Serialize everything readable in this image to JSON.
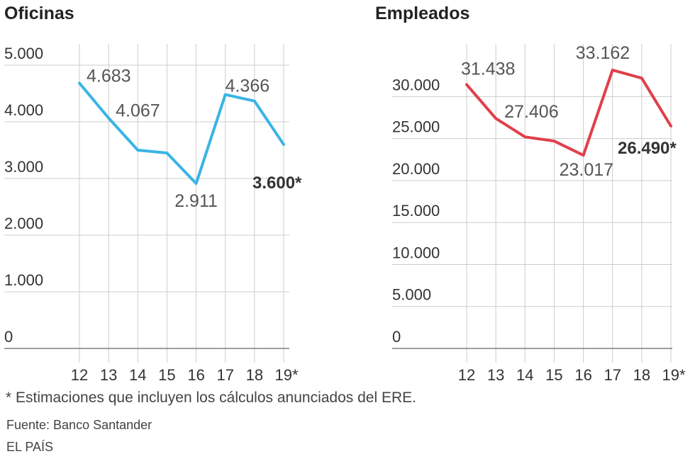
{
  "footnote": "* Estimaciones que incluyen los cálculos anunciados del ERE.",
  "source": "Fuente: Banco Santander",
  "credit": "EL PAÍS",
  "chart_data": [
    {
      "type": "line",
      "title": "Oficinas",
      "categories": [
        "12",
        "13",
        "14",
        "15",
        "16",
        "17",
        "18",
        "19*"
      ],
      "series": [
        {
          "values": [
            4683,
            4067,
            3500,
            3450,
            2911,
            4480,
            4366,
            3600
          ],
          "color": "#3ab4e6"
        }
      ],
      "ylim": [
        0,
        5000
      ],
      "yticks": [
        {
          "value": 0,
          "label": "0"
        },
        {
          "value": 1000,
          "label": "1.000"
        },
        {
          "value": 2000,
          "label": "2.000"
        },
        {
          "value": 3000,
          "label": "3.000"
        },
        {
          "value": 4000,
          "label": "4.000"
        },
        {
          "value": 5000,
          "label": "5.000"
        }
      ],
      "data_labels": [
        {
          "index": 0,
          "text": "4.683",
          "bold": false
        },
        {
          "index": 1,
          "text": "4.067",
          "bold": false
        },
        {
          "index": 4,
          "text": "2.911",
          "bold": false
        },
        {
          "index": 6,
          "text": "4.366",
          "bold": false
        },
        {
          "index": 7,
          "text": "3.600*",
          "bold": true
        }
      ],
      "grid": true
    },
    {
      "type": "line",
      "title": "Empleados",
      "categories": [
        "12",
        "13",
        "14",
        "15",
        "16",
        "17",
        "18",
        "19*"
      ],
      "series": [
        {
          "values": [
            31438,
            27406,
            25200,
            24700,
            23017,
            33162,
            32200,
            26490
          ],
          "color": "#e0404a"
        }
      ],
      "ylim": [
        0,
        33000
      ],
      "yticks": [
        {
          "value": 0,
          "label": "0"
        },
        {
          "value": 5000,
          "label": "5.000"
        },
        {
          "value": 10000,
          "label": "10.000"
        },
        {
          "value": 15000,
          "label": "15.000"
        },
        {
          "value": 20000,
          "label": "20.000"
        },
        {
          "value": 25000,
          "label": "25.000"
        },
        {
          "value": 30000,
          "label": "30.000"
        }
      ],
      "data_labels": [
        {
          "index": 0,
          "text": "31.438",
          "bold": false
        },
        {
          "index": 1,
          "text": "27.406",
          "bold": false
        },
        {
          "index": 4,
          "text": "23.017",
          "bold": false
        },
        {
          "index": 5,
          "text": "33.162",
          "bold": false
        },
        {
          "index": 7,
          "text": "26.490*",
          "bold": true
        }
      ],
      "grid": true
    }
  ]
}
